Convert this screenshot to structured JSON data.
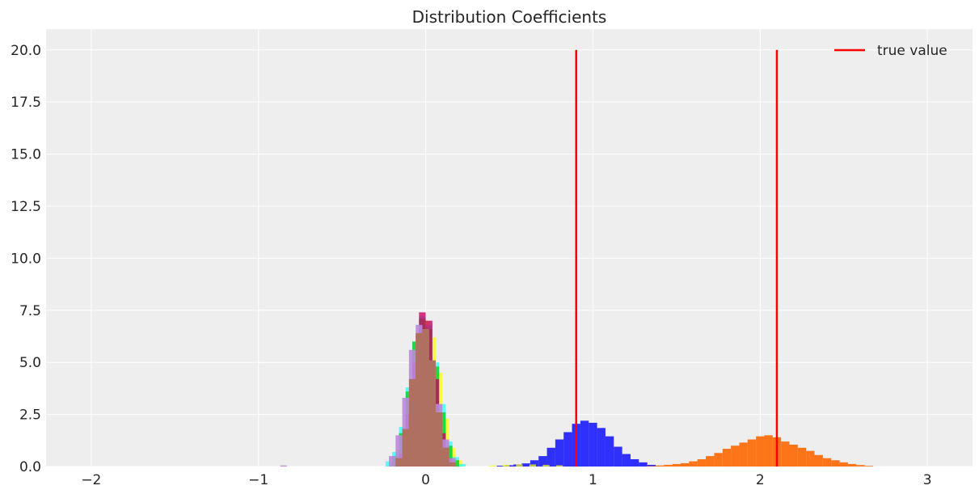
{
  "chart_data": {
    "type": "histogram",
    "title": "Distribution Coefficients",
    "xlabel": "",
    "ylabel": "",
    "xlim": [
      -2.27,
      3.27
    ],
    "ylim": [
      0,
      21
    ],
    "x_ticks": [
      -2,
      -1,
      0,
      1,
      2,
      3
    ],
    "x_tick_labels": [
      "−2",
      "−1",
      "0",
      "1",
      "2",
      "3"
    ],
    "y_ticks": [
      0,
      2.5,
      5,
      7.5,
      10,
      12.5,
      15,
      17.5,
      20
    ],
    "y_tick_labels": [
      "0.0",
      "2.5",
      "5.0",
      "7.5",
      "10.0",
      "12.5",
      "15.0",
      "17.5",
      "20.0"
    ],
    "grid": true,
    "legend": {
      "position": "top-right",
      "entries": [
        {
          "label": "true value",
          "color": "#ff0000"
        }
      ]
    },
    "true_values": {
      "x": [
        0.9,
        2.1
      ],
      "y_range": [
        0,
        20
      ],
      "color": "#ff0000"
    },
    "histograms": [
      {
        "color": "#0000ff",
        "alpha": 0.8,
        "bin_width": 0.05,
        "bins": [
          [
            0.45,
            0.04
          ],
          [
            0.5,
            0.06
          ],
          [
            0.55,
            0.1
          ],
          [
            0.6,
            0.15
          ],
          [
            0.65,
            0.3
          ],
          [
            0.7,
            0.5
          ],
          [
            0.75,
            0.9
          ],
          [
            0.8,
            1.3
          ],
          [
            0.85,
            1.65
          ],
          [
            0.9,
            2.05
          ],
          [
            0.95,
            2.2
          ],
          [
            1.0,
            2.1
          ],
          [
            1.05,
            1.85
          ],
          [
            1.1,
            1.45
          ],
          [
            1.15,
            0.95
          ],
          [
            1.2,
            0.6
          ],
          [
            1.25,
            0.35
          ],
          [
            1.3,
            0.2
          ],
          [
            1.35,
            0.08
          ]
        ]
      },
      {
        "color": "#ff6600",
        "alpha": 0.9,
        "bin_width": 0.05,
        "bins": [
          [
            1.35,
            0.02
          ],
          [
            1.4,
            0.05
          ],
          [
            1.45,
            0.08
          ],
          [
            1.5,
            0.12
          ],
          [
            1.55,
            0.16
          ],
          [
            1.6,
            0.25
          ],
          [
            1.65,
            0.35
          ],
          [
            1.7,
            0.5
          ],
          [
            1.75,
            0.65
          ],
          [
            1.8,
            0.85
          ],
          [
            1.85,
            1.0
          ],
          [
            1.9,
            1.15
          ],
          [
            1.95,
            1.3
          ],
          [
            2.0,
            1.45
          ],
          [
            2.05,
            1.5
          ],
          [
            2.1,
            1.4
          ],
          [
            2.15,
            1.2
          ],
          [
            2.2,
            1.05
          ],
          [
            2.25,
            0.9
          ],
          [
            2.3,
            0.75
          ],
          [
            2.35,
            0.55
          ],
          [
            2.4,
            0.4
          ],
          [
            2.45,
            0.3
          ],
          [
            2.5,
            0.2
          ],
          [
            2.55,
            0.12
          ],
          [
            2.6,
            0.07
          ],
          [
            2.65,
            0.03
          ]
        ]
      },
      {
        "color": "#ffff00",
        "alpha": 0.7,
        "bin_width": 0.04,
        "bins": [
          [
            -0.2,
            0.3
          ],
          [
            -0.16,
            0.8
          ],
          [
            -0.12,
            2.0
          ],
          [
            -0.08,
            4.0
          ],
          [
            -0.04,
            6.3
          ],
          [
            0.0,
            7.0
          ],
          [
            0.04,
            6.2
          ],
          [
            0.08,
            4.5
          ],
          [
            0.12,
            2.3
          ],
          [
            0.16,
            0.9
          ],
          [
            0.2,
            0.3
          ],
          [
            0.4,
            0.05
          ],
          [
            0.48,
            0.08
          ],
          [
            0.56,
            0.1
          ],
          [
            0.64,
            0.1
          ],
          [
            0.72,
            0.08
          ],
          [
            0.8,
            0.06
          ]
        ]
      },
      {
        "color": "#00ffff",
        "alpha": 0.6,
        "bin_width": 0.04,
        "bins": [
          [
            -0.22,
            0.25
          ],
          [
            -0.18,
            0.7
          ],
          [
            -0.14,
            1.9
          ],
          [
            -0.1,
            3.8
          ],
          [
            -0.06,
            6.0
          ],
          [
            -0.02,
            7.2
          ],
          [
            0.02,
            6.8
          ],
          [
            0.06,
            5.0
          ],
          [
            0.1,
            3.0
          ],
          [
            0.14,
            1.2
          ],
          [
            0.18,
            0.45
          ],
          [
            0.22,
            0.12
          ]
        ]
      },
      {
        "color": "#00cc00",
        "alpha": 0.7,
        "bin_width": 0.04,
        "bins": [
          [
            -0.18,
            0.5
          ],
          [
            -0.14,
            1.6
          ],
          [
            -0.1,
            3.6
          ],
          [
            -0.06,
            6.0
          ],
          [
            -0.02,
            7.1
          ],
          [
            0.02,
            6.6
          ],
          [
            0.06,
            4.8
          ],
          [
            0.1,
            2.6
          ],
          [
            0.14,
            1.0
          ],
          [
            0.18,
            0.3
          ]
        ]
      },
      {
        "color": "#cc0066",
        "alpha": 0.8,
        "bin_width": 0.04,
        "bins": [
          [
            -0.14,
            0.6
          ],
          [
            -0.1,
            2.5
          ],
          [
            -0.06,
            5.0
          ],
          [
            -0.02,
            7.4
          ],
          [
            0.02,
            7.0
          ],
          [
            0.06,
            4.2
          ],
          [
            0.1,
            1.6
          ],
          [
            0.14,
            0.4
          ]
        ]
      },
      {
        "color": "#bb88dd",
        "alpha": 0.9,
        "bin_width": 0.04,
        "bins": [
          [
            -0.85,
            0.05
          ],
          [
            -0.2,
            0.5
          ],
          [
            -0.16,
            1.5
          ],
          [
            -0.12,
            3.3
          ],
          [
            -0.08,
            5.6
          ],
          [
            -0.04,
            6.8
          ],
          [
            0.0,
            6.5
          ],
          [
            0.04,
            5.0
          ],
          [
            0.08,
            3.0
          ],
          [
            0.12,
            1.3
          ],
          [
            0.16,
            0.4
          ]
        ]
      },
      {
        "color": "#b07060",
        "alpha": 1.0,
        "bin_width": 0.04,
        "bins": [
          [
            -0.16,
            0.4
          ],
          [
            -0.12,
            1.8
          ],
          [
            -0.08,
            4.2
          ],
          [
            -0.04,
            6.4
          ],
          [
            0.0,
            6.6
          ],
          [
            0.04,
            5.1
          ],
          [
            0.08,
            2.6
          ],
          [
            0.12,
            0.9
          ],
          [
            0.16,
            0.2
          ]
        ]
      }
    ]
  }
}
